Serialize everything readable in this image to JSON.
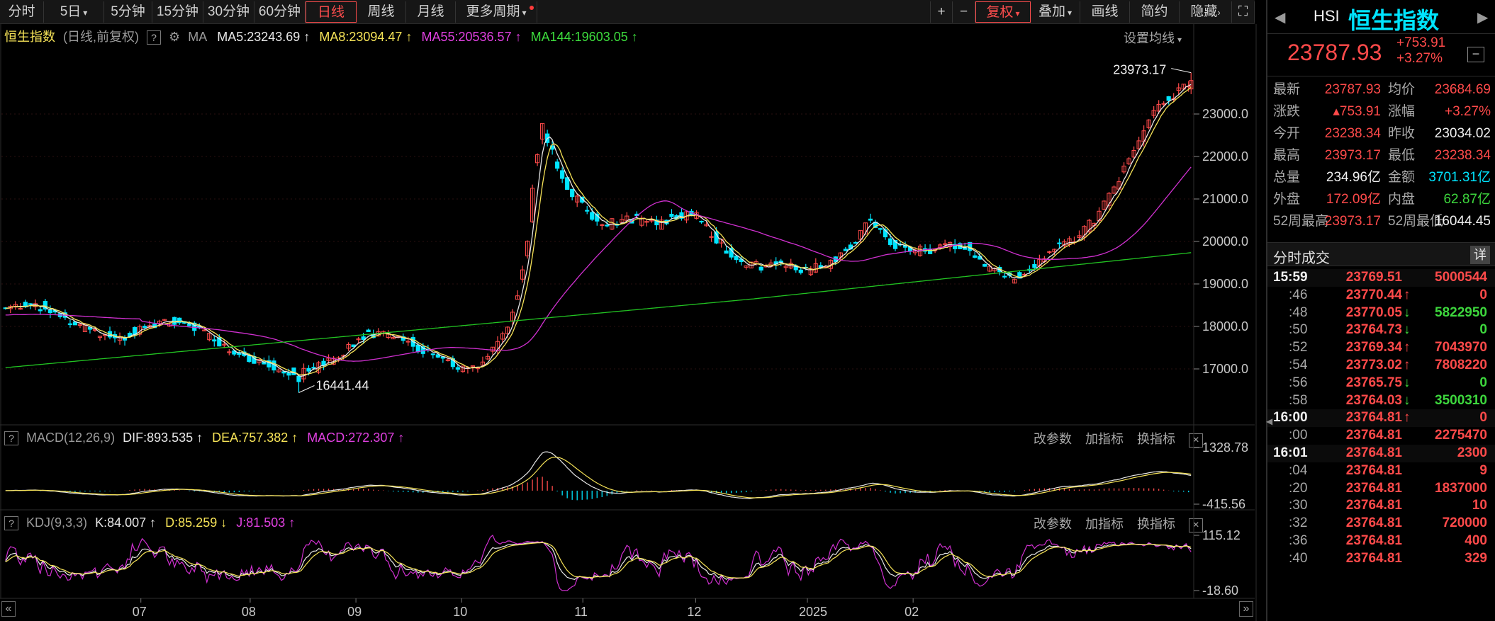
{
  "toolbar": {
    "periods": [
      "分时",
      "5日",
      "5分钟",
      "15分钟",
      "30分钟",
      "60分钟",
      "日线",
      "周线",
      "月线",
      "更多周期"
    ],
    "active_period": "日线",
    "zoom_in": "+",
    "zoom_out": "−",
    "restore": "复权",
    "overlay": "叠加",
    "draw": "画线",
    "simple": "简约",
    "hide": "隐藏"
  },
  "main": {
    "name": "恒生指数",
    "mode": "(日线,前复权)",
    "ma_label": "MA",
    "ma5": "MA5:23243.69",
    "ma8": "MA8:23094.47",
    "ma55": "MA55:20536.57",
    "ma144": "MA144:19603.05",
    "settings": "设置均线",
    "high_label": "23973.17",
    "low_label": "16441.44",
    "y_ticks": [
      "23000.0",
      "22000.0",
      "21000.0",
      "20000.0",
      "19000.0",
      "18000.0",
      "17000.0"
    ]
  },
  "macd": {
    "title": "MACD(12,26,9)",
    "dif": "DIF:893.535",
    "dea": "DEA:757.382",
    "macd": "MACD:272.307",
    "links": [
      "改参数",
      "加指标",
      "换指标"
    ],
    "y_top": "1328.78",
    "y_bottom": "-415.56"
  },
  "kdj": {
    "title": "KDJ(9,3,3)",
    "k": "K:84.007",
    "d": "D:85.259",
    "j": "J:81.503",
    "links": [
      "改参数",
      "加指标",
      "换指标"
    ],
    "y_top": "115.12",
    "y_bottom": "-18.60"
  },
  "xaxis": {
    "labels": [
      "07",
      "08",
      "09",
      "10",
      "11",
      "12",
      "2025",
      "02"
    ]
  },
  "colors": {
    "up": "#ff4a4a",
    "down": "#00e5ff",
    "ma5": "#e6e6e6",
    "ma8": "#f5e257",
    "ma55": "#d030d0",
    "ma144": "#22c322"
  },
  "panel": {
    "code": "HSI",
    "name": "恒生指数",
    "price": "23787.93",
    "change": "+753.91",
    "pct": "+3.27%",
    "quote": [
      {
        "l1": "最新",
        "v1": "23787.93",
        "c1": "red",
        "l2": "均价",
        "v2": "23684.69",
        "c2": "red"
      },
      {
        "l1": "涨跌",
        "v1": "▴753.91",
        "c1": "red",
        "l2": "涨幅",
        "v2": "+3.27%",
        "c2": "red"
      },
      {
        "l1": "今开",
        "v1": "23238.34",
        "c1": "red",
        "l2": "昨收",
        "v2": "23034.02",
        "c2": "white"
      },
      {
        "l1": "最高",
        "v1": "23973.17",
        "c1": "red",
        "l2": "最低",
        "v2": "23238.34",
        "c2": "red"
      },
      {
        "l1": "总量",
        "v1": "234.96亿",
        "c1": "white",
        "l2": "金额",
        "v2": "3701.31亿",
        "c2": "cyan"
      },
      {
        "l1": "外盘",
        "v1": "172.09亿",
        "c1": "red",
        "l2": "内盘",
        "v2": "62.87亿",
        "c2": "green"
      },
      {
        "l1": "52周最高",
        "v1": "23973.17",
        "c1": "red",
        "l2": "52周最低",
        "v2": "16044.45",
        "c2": "white"
      }
    ],
    "trades_title": "分时成交",
    "trades_detail": "详",
    "trades": [
      {
        "t": "15:59",
        "p": "23769.51",
        "a": "",
        "v": "5000544",
        "vc": "red",
        "bold": true
      },
      {
        "t": ":46",
        "p": "23770.44",
        "a": "up",
        "v": "0",
        "vc": "red",
        "bold": false
      },
      {
        "t": ":48",
        "p": "23770.05",
        "a": "down",
        "v": "5822950",
        "vc": "green",
        "bold": false
      },
      {
        "t": ":50",
        "p": "23764.73",
        "a": "down",
        "v": "0",
        "vc": "green",
        "bold": false
      },
      {
        "t": ":52",
        "p": "23769.34",
        "a": "up",
        "v": "7043970",
        "vc": "red",
        "bold": false
      },
      {
        "t": ":54",
        "p": "23773.02",
        "a": "up",
        "v": "7808220",
        "vc": "red",
        "bold": false
      },
      {
        "t": ":56",
        "p": "23765.75",
        "a": "down",
        "v": "0",
        "vc": "green",
        "bold": false
      },
      {
        "t": ":58",
        "p": "23764.03",
        "a": "down",
        "v": "3500310",
        "vc": "green",
        "bold": false
      },
      {
        "t": "16:00",
        "p": "23764.81",
        "a": "up",
        "v": "0",
        "vc": "red",
        "bold": true
      },
      {
        "t": ":00",
        "p": "23764.81",
        "a": "",
        "v": "2275470",
        "vc": "red",
        "bold": false
      },
      {
        "t": "16:01",
        "p": "23764.81",
        "a": "",
        "v": "2300",
        "vc": "red",
        "bold": true
      },
      {
        "t": ":04",
        "p": "23764.81",
        "a": "",
        "v": "9",
        "vc": "red",
        "bold": false
      },
      {
        "t": ":20",
        "p": "23764.81",
        "a": "",
        "v": "1837000",
        "vc": "red",
        "bold": false
      },
      {
        "t": ":30",
        "p": "23764.81",
        "a": "",
        "v": "10",
        "vc": "red",
        "bold": false
      },
      {
        "t": ":32",
        "p": "23764.81",
        "a": "",
        "v": "720000",
        "vc": "red",
        "bold": false
      },
      {
        "t": ":36",
        "p": "23764.81",
        "a": "",
        "v": "400",
        "vc": "red",
        "bold": false
      },
      {
        "t": ":40",
        "p": "23764.81",
        "a": "",
        "v": "329",
        "vc": "red",
        "bold": false
      }
    ]
  }
}
